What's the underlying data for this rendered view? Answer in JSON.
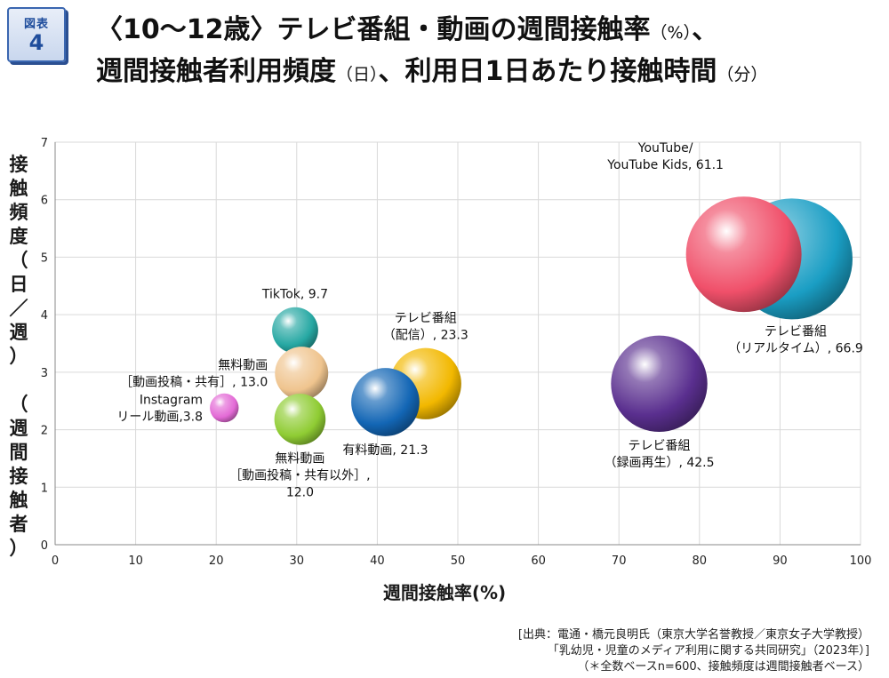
{
  "badge": {
    "line1": "図表",
    "line2": "4"
  },
  "title": {
    "line1_main": "〈10〜12歳〉テレビ番組・動画の週間接触率",
    "line1_unit": "（%）",
    "line1_sep": "、",
    "line2_a": "週間接触者利用頻度",
    "line2_a_unit": "（日）",
    "line2_b": "、利用日1日あたり接触時間",
    "line2_b_unit": "（分）"
  },
  "y_axis_title": [
    "接",
    "触",
    "頻",
    "度",
    "（",
    "日",
    "／",
    "週",
    "）",
    "",
    "（",
    "週",
    "間",
    "接",
    "触",
    "者",
    "）"
  ],
  "x_axis_title": "週間接触率(%)",
  "source": [
    "[出典：電通・橋元良明氏（東京大学名誉教授／東京女子大学教授）",
    "「乳幼児・児童のメディア利用に関する共同研究」（2023年）]",
    "（＊全数ベースn=600、接触頻度は週間接触者ベース）"
  ],
  "chart_data": {
    "type": "bubble",
    "xlabel": "週間接触率(%)",
    "ylabel": "接触頻度（日／週）（週間接触者）",
    "xlim": [
      0,
      100
    ],
    "ylim": [
      0,
      7
    ],
    "xticks": [
      "0",
      "10",
      "20",
      "30",
      "40",
      "50",
      "60",
      "70",
      "80",
      "90",
      "100"
    ],
    "yticks": [
      "0",
      "1",
      "2",
      "3",
      "4",
      "5",
      "6",
      "7"
    ],
    "grid": true,
    "points": [
      {
        "name": "テレビ番組（リアルタイム）",
        "x": 91.5,
        "y": 4.97,
        "size": 66.9,
        "color": "#1a9ec4",
        "label": [
          "テレビ番組",
          "（リアルタイム）, 66.9"
        ],
        "label_pos": "below-right"
      },
      {
        "name": "YouTube/YouTube Kids",
        "x": 85.5,
        "y": 5.05,
        "size": 61.1,
        "color": "#f0506a",
        "label": [
          "YouTube/",
          "YouTube Kids, 61.1"
        ],
        "label_pos": "above-left"
      },
      {
        "name": "テレビ番組（録画再生）",
        "x": 75.0,
        "y": 2.8,
        "size": 42.5,
        "color": "#5a2f8f",
        "label": [
          "テレビ番組",
          "（録画再生）, 42.5"
        ],
        "label_pos": "below"
      },
      {
        "name": "テレビ番組（配信）",
        "x": 46.0,
        "y": 2.8,
        "size": 23.3,
        "color": "#f2b800",
        "label": [
          "テレビ番組",
          "（配信）, 23.3"
        ],
        "label_pos": "above"
      },
      {
        "name": "有料動画",
        "x": 41.0,
        "y": 2.48,
        "size": 21.3,
        "color": "#1366b5",
        "label": [
          "有料動画, 21.3"
        ],
        "label_pos": "below"
      },
      {
        "name": "TikTok",
        "x": 29.8,
        "y": 3.73,
        "size": 9.7,
        "color": "#26a8a3",
        "label": [
          "TikTok, 9.7"
        ],
        "label_pos": "above"
      },
      {
        "name": "無料動画［動画投稿・共有］",
        "x": 30.6,
        "y": 2.98,
        "size": 13.0,
        "color": "#efc48e",
        "label": [
          "無料動画",
          "［動画投稿・共有］, 13.0"
        ],
        "label_pos": "left"
      },
      {
        "name": "無料動画［動画投稿・共有以外］",
        "x": 30.4,
        "y": 2.18,
        "size": 12.0,
        "color": "#8fcc33",
        "label": [
          "無料動画",
          "［動画投稿・共有以外］,",
          "12.0"
        ],
        "label_pos": "below"
      },
      {
        "name": "Instagramリール動画",
        "x": 21.0,
        "y": 2.38,
        "size": 3.8,
        "color": "#e36ad6",
        "label": [
          "Instagram",
          "リール動画,3.8"
        ],
        "label_pos": "left"
      }
    ]
  }
}
